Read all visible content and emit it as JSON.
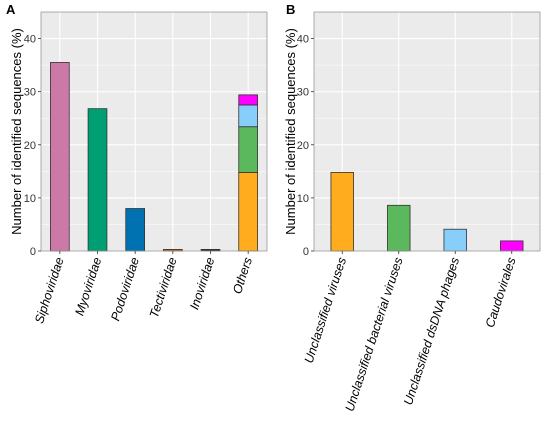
{
  "chart_data": [
    {
      "panel": "A",
      "type": "bar",
      "stacked": true,
      "ylabel": "Number of identified sequences (%)",
      "ylim": [
        0,
        45
      ],
      "yticks": [
        0,
        10,
        20,
        30,
        40
      ],
      "grid": true,
      "categories": [
        "Siphoviridae",
        "Myoviridae",
        "Podoviridae",
        "Tectiviridae",
        "Inoviridae",
        "Others"
      ],
      "bars": [
        {
          "category": "Siphoviridae",
          "segments": [
            {
              "value": 35.5,
              "color": "#cc79a7"
            }
          ]
        },
        {
          "category": "Myoviridae",
          "segments": [
            {
              "value": 26.8,
              "color": "#009e73"
            }
          ]
        },
        {
          "category": "Podoviridae",
          "segments": [
            {
              "value": 8.0,
              "color": "#0072b2"
            }
          ]
        },
        {
          "category": "Tectiviridae",
          "segments": [
            {
              "value": 0.3,
              "color": "#d55e00"
            }
          ]
        },
        {
          "category": "Inoviridae",
          "segments": [
            {
              "value": 0.3,
              "color": "#222222"
            }
          ]
        },
        {
          "category": "Others",
          "segments": [
            {
              "value": 14.8,
              "color": "#ffad1f"
            },
            {
              "value": 8.6,
              "color": "#5cb85c"
            },
            {
              "value": 4.1,
              "color": "#87cefa"
            },
            {
              "value": 1.9,
              "color": "#ff00ff"
            }
          ]
        }
      ]
    },
    {
      "panel": "B",
      "type": "bar",
      "stacked": false,
      "ylabel": "Number of identified sequences (%)",
      "ylim": [
        0,
        45
      ],
      "yticks": [
        0,
        10,
        20,
        30,
        40
      ],
      "grid": true,
      "categories": [
        "Unclassified viruses",
        "Unclassified bacterial viruses",
        "Unclassified dsDNA phages",
        "Caudovirales"
      ],
      "bars": [
        {
          "category": "Unclassified viruses",
          "segments": [
            {
              "value": 14.8,
              "color": "#ffad1f"
            }
          ]
        },
        {
          "category": "Unclassified bacterial viruses",
          "segments": [
            {
              "value": 8.6,
              "color": "#5cb85c"
            }
          ]
        },
        {
          "category": "Unclassified dsDNA phages",
          "segments": [
            {
              "value": 4.1,
              "color": "#87cefa"
            }
          ]
        },
        {
          "category": "Caudovirales",
          "segments": [
            {
              "value": 1.9,
              "color": "#ff00ff"
            }
          ]
        }
      ]
    }
  ]
}
